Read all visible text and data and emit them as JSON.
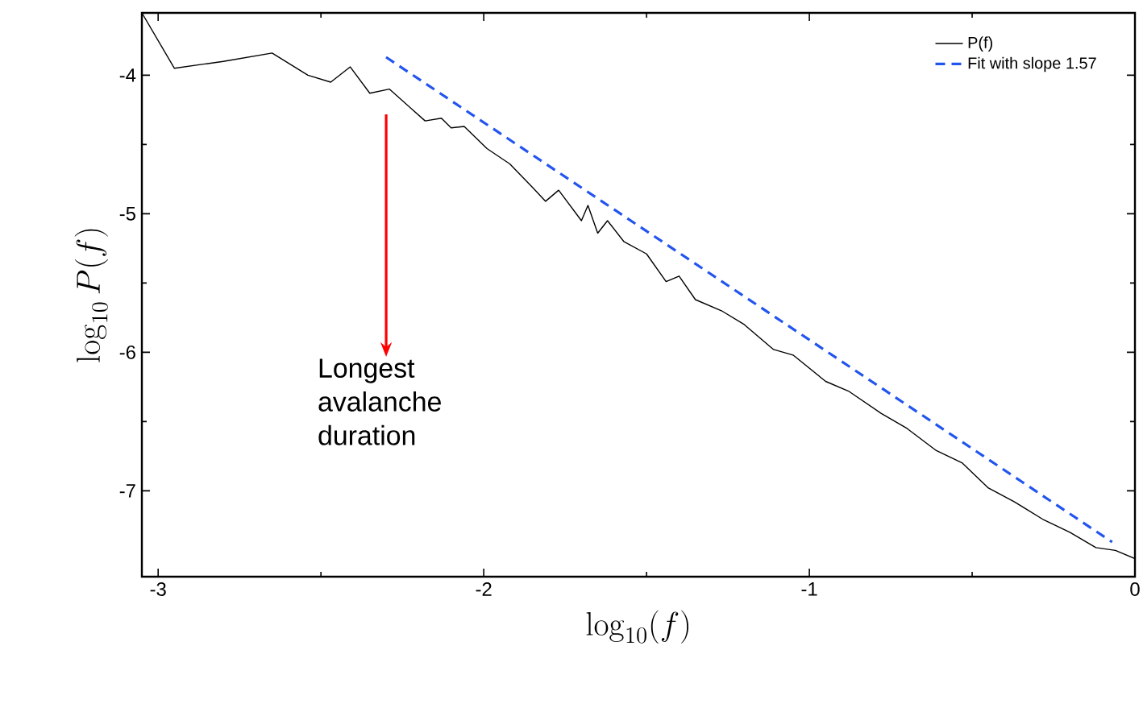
{
  "chart_data": {
    "type": "line",
    "xlabel": "\\log_{10}(f)",
    "ylabel": "\\log_{10} P(f)",
    "xlim": [
      -3.05,
      0
    ],
    "ylim": [
      -7.62,
      -3.55
    ],
    "xticks": [
      -3,
      -2,
      -1,
      0
    ],
    "yticks": [
      -7,
      -6,
      -5,
      -4
    ],
    "legend": "top right",
    "marker": "none",
    "series": [
      {
        "name": "P(f)",
        "color": "#000000",
        "line_style": "solid",
        "x": [
          -3.05,
          -2.95,
          -2.8,
          -2.65,
          -2.54,
          -2.47,
          -2.41,
          -2.35,
          -2.29,
          -2.18,
          -2.13,
          -2.1,
          -2.06,
          -1.99,
          -1.92,
          -1.85,
          -1.81,
          -1.77,
          -1.7,
          -1.68,
          -1.65,
          -1.62,
          -1.57,
          -1.5,
          -1.44,
          -1.4,
          -1.35,
          -1.27,
          -1.2,
          -1.11,
          -1.05,
          -0.95,
          -0.88,
          -0.78,
          -0.7,
          -0.61,
          -0.53,
          -0.45,
          -0.37,
          -0.28,
          -0.2,
          -0.12,
          -0.06,
          0
        ],
        "values": [
          -3.55,
          -3.95,
          -3.9,
          -3.84,
          -4.0,
          -4.05,
          -3.94,
          -4.13,
          -4.1,
          -4.33,
          -4.31,
          -4.38,
          -4.37,
          -4.53,
          -4.64,
          -4.81,
          -4.91,
          -4.83,
          -5.05,
          -4.94,
          -5.14,
          -5.05,
          -5.2,
          -5.29,
          -5.49,
          -5.45,
          -5.62,
          -5.7,
          -5.8,
          -5.98,
          -6.02,
          -6.21,
          -6.28,
          -6.44,
          -6.55,
          -6.71,
          -6.8,
          -6.98,
          -7.08,
          -7.21,
          -7.3,
          -7.41,
          -7.43,
          -7.49
        ]
      },
      {
        "name": "Fit with slope 1.57",
        "color": "#2255ee",
        "line_style": "dashed",
        "x": [
          -2.3,
          -0.07
        ],
        "values": [
          -3.87,
          -7.37
        ]
      }
    ],
    "annotations": [
      "Longest avalanche duration"
    ]
  }
}
